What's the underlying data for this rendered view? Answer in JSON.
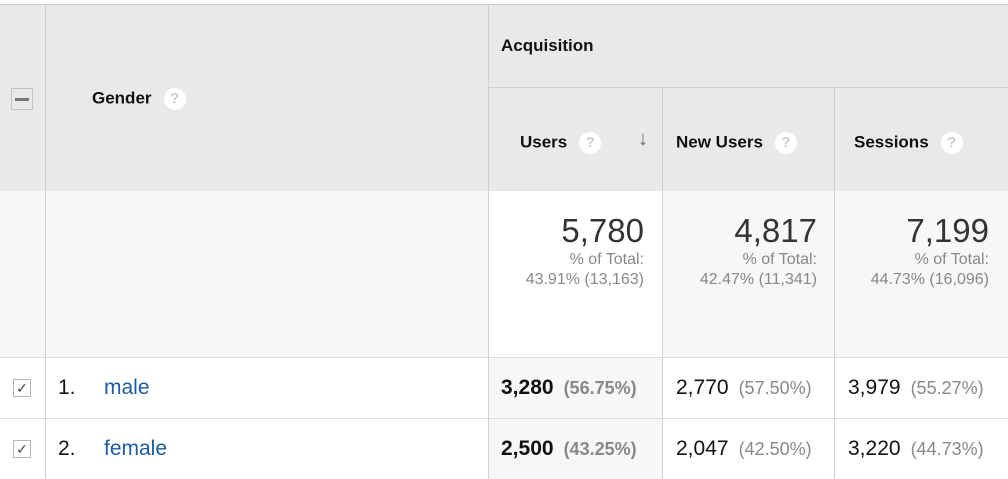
{
  "header": {
    "dimension": "Gender",
    "group": "Acquisition",
    "help": "?",
    "sort_icon": "arrow-down-icon",
    "columns": [
      {
        "label": "Users"
      },
      {
        "label": "New Users"
      },
      {
        "label": "Sessions"
      }
    ]
  },
  "summary": [
    {
      "value": "5,780",
      "label": "% of Total:",
      "total": "43.91% (13,163)"
    },
    {
      "value": "4,817",
      "label": "% of Total:",
      "total": "42.47% (11,341)"
    },
    {
      "value": "7,199",
      "label": "% of Total:",
      "total": "44.73% (16,096)"
    }
  ],
  "rows": [
    {
      "index": "1.",
      "name": "male",
      "checked": true,
      "cells": [
        {
          "v": "3,280",
          "p": "(56.75%)"
        },
        {
          "v": "2,770",
          "p": "(57.50%)"
        },
        {
          "v": "3,979",
          "p": "(55.27%)"
        }
      ]
    },
    {
      "index": "2.",
      "name": "female",
      "checked": true,
      "cells": [
        {
          "v": "2,500",
          "p": "(43.25%)"
        },
        {
          "v": "2,047",
          "p": "(42.50%)"
        },
        {
          "v": "3,220",
          "p": "(44.73%)"
        }
      ]
    }
  ]
}
